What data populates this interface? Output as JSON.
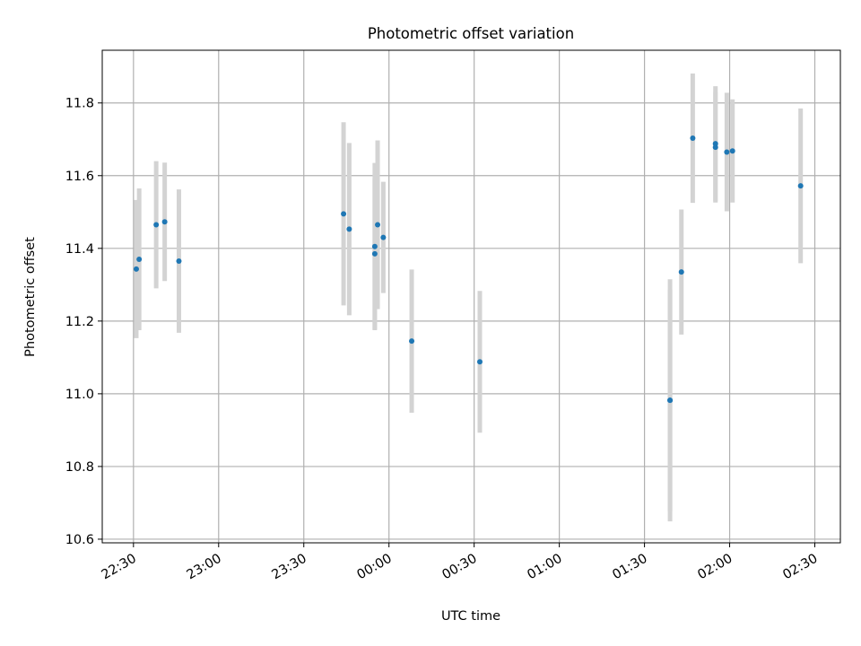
{
  "chart_data": {
    "type": "scatter",
    "title": "Photometric offset variation",
    "xlabel": "UTC time",
    "ylabel": "Photometric offset",
    "x_unit": "time (UTC)",
    "x_ticks": [
      "22:30",
      "23:00",
      "23:30",
      "00:00",
      "00:30",
      "01:00",
      "01:30",
      "02:00",
      "02:30"
    ],
    "x_tick_values": [
      "22:30",
      "23:00",
      "23:30",
      "00:00",
      "00:30",
      "01:00",
      "01:30",
      "02:00",
      "02:30"
    ],
    "xlim": [
      "22:19",
      "02:39"
    ],
    "y_ticks": [
      "10.6",
      "10.8",
      "11.0",
      "11.2",
      "11.4",
      "11.6",
      "11.8"
    ],
    "y_tick_values": [
      10.6,
      10.8,
      11.0,
      11.2,
      11.4,
      11.6,
      11.8
    ],
    "ylim": [
      10.59,
      11.945
    ],
    "grid": true,
    "marker_color": "#1f77b4",
    "errorbar_color": "#d3d3d3",
    "points": [
      {
        "x": "22:31",
        "y": 11.343,
        "yerr": 0.19
      },
      {
        "x": "22:32",
        "y": 11.37,
        "yerr": 0.195
      },
      {
        "x": "22:38",
        "y": 11.465,
        "yerr": 0.175
      },
      {
        "x": "22:41",
        "y": 11.473,
        "yerr": 0.163
      },
      {
        "x": "22:46",
        "y": 11.365,
        "yerr": 0.197
      },
      {
        "x": "23:44",
        "y": 11.495,
        "yerr": 0.252
      },
      {
        "x": "23:46",
        "y": 11.453,
        "yerr": 0.237
      },
      {
        "x": "23:55",
        "y": 11.405,
        "yerr": 0.23
      },
      {
        "x": "23:55",
        "y": 11.385,
        "yerr": 0.207
      },
      {
        "x": "23:56",
        "y": 11.465,
        "yerr": 0.232
      },
      {
        "x": "23:58",
        "y": 11.43,
        "yerr": 0.153
      },
      {
        "x": "00:08",
        "y": 11.145,
        "yerr": 0.197
      },
      {
        "x": "00:32",
        "y": 11.088,
        "yerr": 0.195
      },
      {
        "x": "01:39",
        "y": 10.982,
        "yerr": 0.333
      },
      {
        "x": "01:39",
        "y": 10.982,
        "yerr": 0.305
      },
      {
        "x": "01:43",
        "y": 11.335,
        "yerr": 0.172
      },
      {
        "x": "01:47",
        "y": 11.703,
        "yerr": 0.178
      },
      {
        "x": "01:55",
        "y": 11.688,
        "yerr": 0.158
      },
      {
        "x": "01:55",
        "y": 11.678,
        "yerr": 0.152
      },
      {
        "x": "01:59",
        "y": 11.665,
        "yerr": 0.163
      },
      {
        "x": "02:01",
        "y": 11.668,
        "yerr": 0.142
      },
      {
        "x": "02:25",
        "y": 11.572,
        "yerr": 0.213
      }
    ]
  }
}
